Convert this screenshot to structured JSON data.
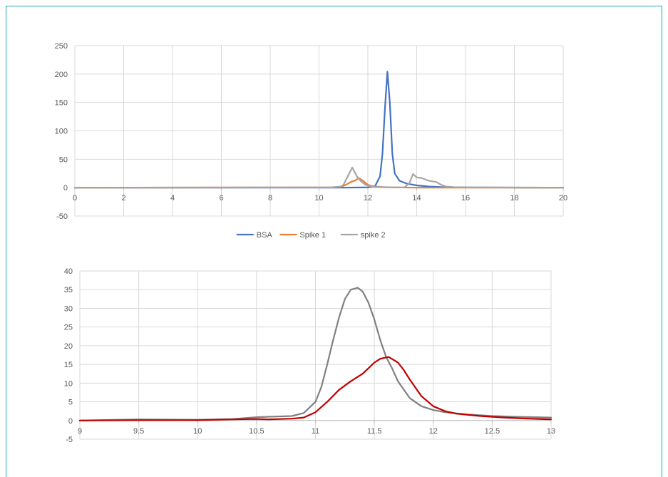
{
  "chart_data": [
    {
      "type": "line",
      "title": "",
      "xlabel": "",
      "ylabel": "",
      "xlim": [
        0,
        20
      ],
      "ylim": [
        -50,
        250
      ],
      "x_ticks": [
        0,
        2,
        4,
        6,
        8,
        10,
        12,
        14,
        16,
        18,
        20
      ],
      "y_ticks": [
        -50,
        0,
        50,
        100,
        150,
        200,
        250
      ],
      "grid": true,
      "legend_position": "bottom",
      "series": [
        {
          "name": "BSA",
          "color": "#4472c4",
          "x": [
            0,
            10,
            11,
            12,
            12.3,
            12.5,
            12.6,
            12.7,
            12.8,
            12.9,
            13.0,
            13.1,
            13.3,
            13.6,
            14,
            14.5,
            15,
            16,
            20
          ],
          "y": [
            0,
            0,
            0,
            0.5,
            3,
            20,
            60,
            140,
            204,
            150,
            60,
            25,
            12,
            7,
            4,
            2,
            1,
            0.5,
            0
          ]
        },
        {
          "name": "Spike 1",
          "color": "#ed7d31",
          "x": [
            0,
            10.5,
            10.9,
            11.1,
            11.3,
            11.5,
            11.62,
            11.8,
            12,
            12.2,
            12.6,
            13,
            14,
            20
          ],
          "y": [
            0,
            0.5,
            1.5,
            5,
            10,
            13,
            17,
            12,
            5,
            2.5,
            1,
            0.5,
            0,
            0
          ]
        },
        {
          "name": "spike 2",
          "color": "#a5a5a5",
          "x": [
            0,
            10.5,
            10.9,
            11.0,
            11.2,
            11.36,
            11.55,
            11.7,
            11.9,
            12.1,
            12.5,
            13.0,
            13.5,
            13.7,
            13.85,
            14.0,
            14.2,
            14.5,
            14.8,
            15.0,
            15.2,
            15.5,
            16,
            20
          ],
          "y": [
            0,
            0.5,
            2,
            5,
            22,
            35.5,
            20,
            12,
            5,
            2.5,
            1,
            0.5,
            0.5,
            8,
            24,
            18,
            17,
            12,
            10,
            5,
            2,
            1,
            0.5,
            0
          ]
        }
      ]
    },
    {
      "type": "line",
      "title": "",
      "xlabel": "",
      "ylabel": "",
      "xlim": [
        9,
        13
      ],
      "ylim": [
        -5,
        40
      ],
      "x_ticks": [
        9,
        9.5,
        10,
        10.5,
        11,
        11.5,
        12,
        12.5,
        13
      ],
      "y_ticks": [
        -5,
        0,
        5,
        10,
        15,
        20,
        25,
        30,
        35,
        40
      ],
      "grid": true,
      "legend_position": "none",
      "series": [
        {
          "color": "#808080",
          "x": [
            9,
            9.5,
            10,
            10.3,
            10.5,
            10.6,
            10.8,
            10.9,
            11.0,
            11.05,
            11.1,
            11.15,
            11.2,
            11.25,
            11.3,
            11.36,
            11.4,
            11.45,
            11.5,
            11.55,
            11.6,
            11.65,
            11.7,
            11.8,
            11.9,
            12.0,
            12.1,
            12.3,
            12.5,
            12.7,
            13.0
          ],
          "y": [
            0,
            0.3,
            0.2,
            0.4,
            0.9,
            1.0,
            1.2,
            2.0,
            5.0,
            9.0,
            15.0,
            21.5,
            27.5,
            32.5,
            35.0,
            35.5,
            34.5,
            31.5,
            27.0,
            21.5,
            17.0,
            14.0,
            10.5,
            6.0,
            3.8,
            2.8,
            2.2,
            1.6,
            1.2,
            1.0,
            0.8
          ]
        },
        {
          "color": "#c00000",
          "x": [
            9,
            9.5,
            10,
            10.3,
            10.5,
            10.6,
            10.8,
            10.9,
            11.0,
            11.1,
            11.2,
            11.3,
            11.4,
            11.45,
            11.5,
            11.55,
            11.62,
            11.7,
            11.75,
            11.8,
            11.9,
            12.0,
            12.1,
            12.2,
            12.4,
            12.6,
            12.8,
            13.0
          ],
          "y": [
            0,
            0.1,
            0.1,
            0.3,
            0.4,
            0.3,
            0.5,
            0.8,
            2.2,
            5.0,
            8.2,
            10.5,
            12.5,
            14.0,
            15.5,
            16.5,
            17.0,
            15.5,
            13.5,
            11.0,
            6.5,
            3.8,
            2.5,
            1.8,
            1.2,
            0.8,
            0.5,
            0.3
          ]
        }
      ]
    }
  ]
}
